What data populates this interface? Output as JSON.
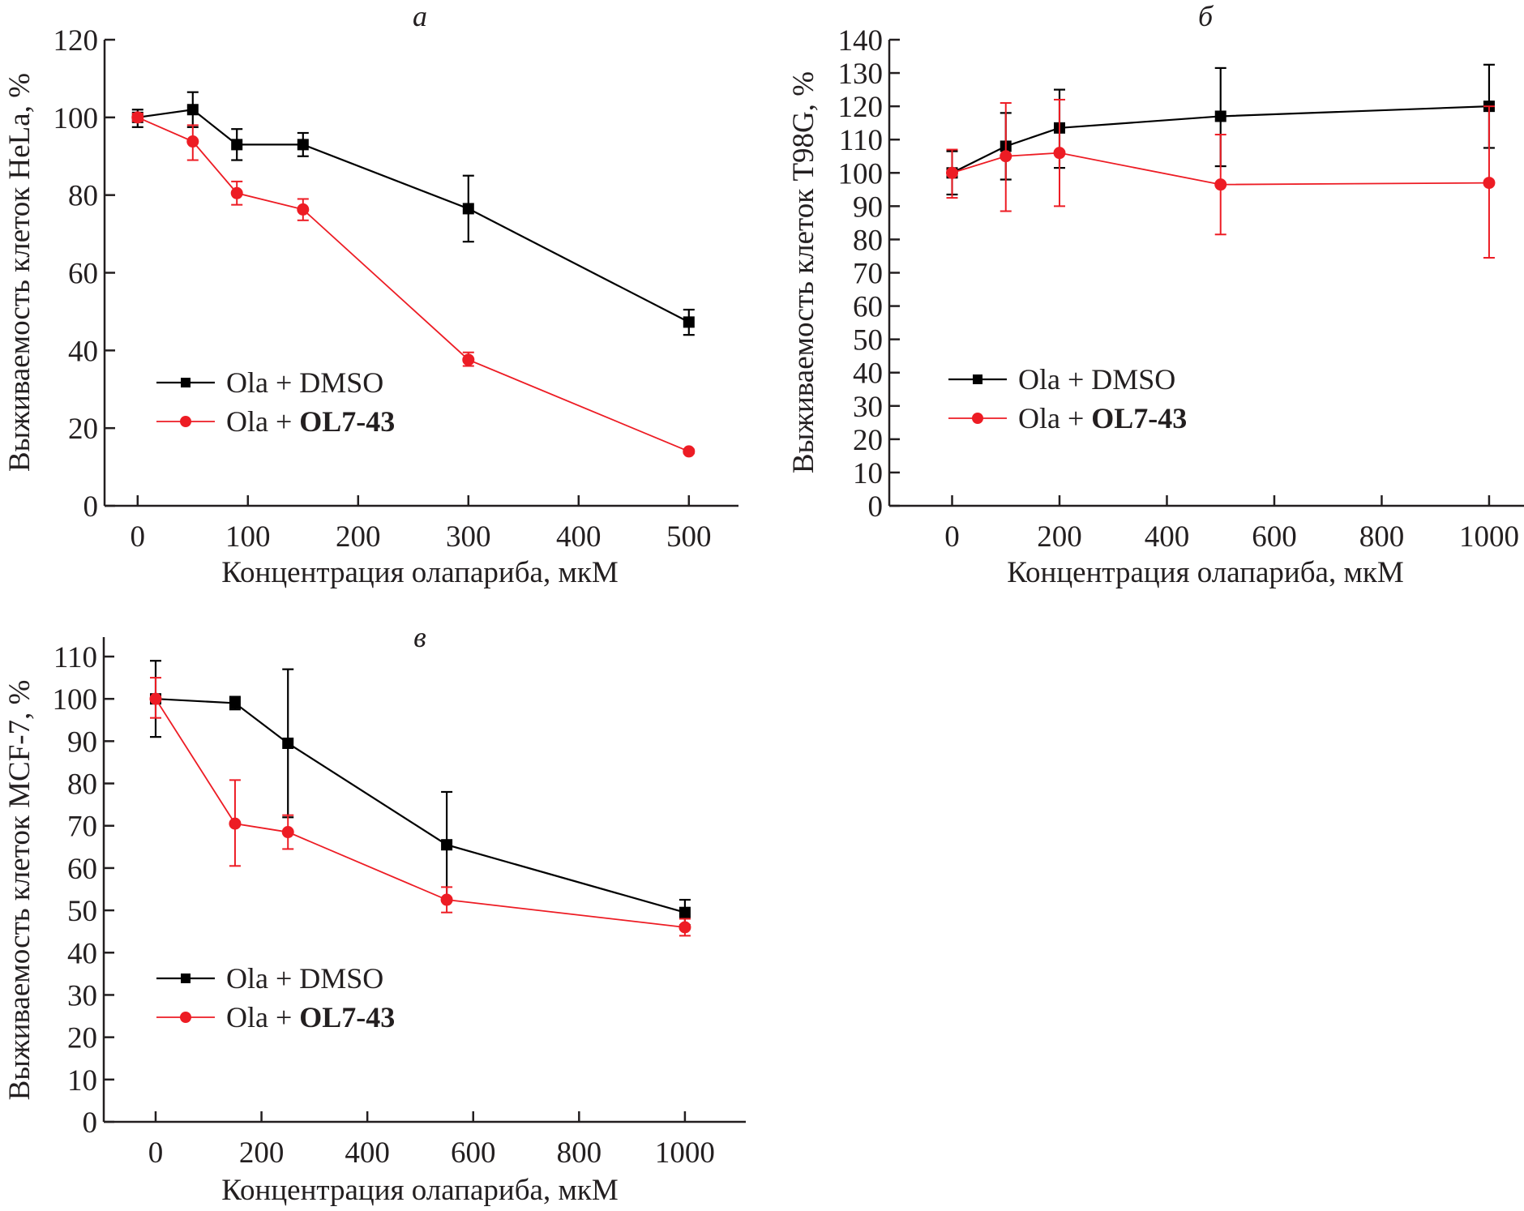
{
  "colors": {
    "dmso": "#000000",
    "ol7": "#ed1c24",
    "axis": "#231f20"
  },
  "chart_data": [
    {
      "type": "line",
      "panel_label": "а",
      "title": "а",
      "xlabel": "Концентрация олапариба, мкМ",
      "ylabel": "Выживаемость клеток HeLa, %",
      "xlim": [
        -30,
        545
      ],
      "ylim": [
        0,
        120
      ],
      "xticks": [
        0,
        100,
        200,
        300,
        400,
        500
      ],
      "yticks": [
        0,
        20,
        40,
        60,
        80,
        100,
        120
      ],
      "xtick_labels": [
        "0",
        "100",
        "200",
        "300",
        "400",
        "500"
      ],
      "ytick_labels": [
        "0",
        "20",
        "40",
        "60",
        "80",
        "100",
        "120"
      ],
      "legend_placement": "lower-left",
      "legend": [
        {
          "prefix": "Ola + ",
          "name": "DMSO",
          "bold": false
        },
        {
          "prefix": "Ola + ",
          "name": "OL7-43",
          "bold": true
        }
      ],
      "series": [
        {
          "name": "Ola + DMSO",
          "marker": "square",
          "color_key": "dmso",
          "x": [
            0,
            50,
            90,
            150,
            300,
            500
          ],
          "y": [
            100,
            102,
            93,
            93,
            76.5,
            47.3
          ],
          "err_low": [
            97.5,
            97.5,
            89,
            90,
            68,
            44
          ],
          "err_high": [
            102,
            106.5,
            97,
            96,
            85,
            50.5
          ]
        },
        {
          "name": "Ola + OL7-43",
          "marker": "circle",
          "color_key": "ol7",
          "x": [
            0,
            50,
            90,
            150,
            300,
            500
          ],
          "y": [
            100,
            93.8,
            80.5,
            76.3,
            37.6,
            14
          ],
          "err_low": [
            99,
            89,
            77.5,
            73.5,
            36,
            13.5
          ],
          "err_high": [
            101,
            98,
            83.5,
            79,
            39.5,
            14.5
          ]
        }
      ]
    },
    {
      "type": "line",
      "panel_label": "б",
      "title": "б",
      "xlabel": "Концентрация олапариба, мкМ",
      "ylabel": "Выживаемость клеток T98G, %",
      "xlim": [
        -117,
        1065
      ],
      "ylim": [
        0,
        140
      ],
      "xticks": [
        0,
        200,
        400,
        600,
        800,
        1000
      ],
      "yticks": [
        0,
        10,
        20,
        30,
        40,
        50,
        60,
        70,
        80,
        90,
        100,
        110,
        120,
        130,
        140
      ],
      "xtick_labels": [
        "0",
        "200",
        "400",
        "600",
        "800",
        "1000"
      ],
      "ytick_labels": [
        "0",
        "10",
        "20",
        "30",
        "40",
        "50",
        "60",
        "70",
        "80",
        "90",
        "100",
        "110",
        "120",
        "130",
        "140"
      ],
      "legend_placement": "lower-left",
      "legend": [
        {
          "prefix": "Ola + ",
          "name": "DMSO",
          "bold": false
        },
        {
          "prefix": "Ola + ",
          "name": "OL7-43",
          "bold": true
        }
      ],
      "series": [
        {
          "name": "Ola + DMSO",
          "marker": "square",
          "color_key": "dmso",
          "x": [
            0,
            100,
            200,
            500,
            1000
          ],
          "y": [
            100,
            108,
            113.5,
            117,
            120
          ],
          "err_low": [
            93.5,
            98,
            101.5,
            102,
            107.5
          ],
          "err_high": [
            106.5,
            118,
            125,
            131.5,
            132.5
          ]
        },
        {
          "name": "Ola + OL7-43",
          "marker": "circle",
          "color_key": "ol7",
          "x": [
            0,
            100,
            200,
            500,
            1000
          ],
          "y": [
            100,
            105,
            106,
            96.5,
            97
          ],
          "err_low": [
            92.5,
            88.5,
            90,
            81.5,
            74.5
          ],
          "err_high": [
            107,
            121,
            122,
            111.5,
            120
          ]
        }
      ]
    },
    {
      "type": "line",
      "panel_label": "в",
      "title": "в",
      "xlabel": "Концентрация олапариба, мкМ",
      "ylabel": "Выживаемость клеток MCF-7, %",
      "xlim": [
        -98,
        1115
      ],
      "ylim": [
        0,
        115
      ],
      "xticks": [
        0,
        200,
        400,
        600,
        800,
        1000
      ],
      "yticks": [
        0,
        10,
        20,
        30,
        40,
        50,
        60,
        70,
        80,
        90,
        100,
        110
      ],
      "xtick_labels": [
        "0",
        "200",
        "400",
        "600",
        "800",
        "1000"
      ],
      "ytick_labels": [
        "0",
        "10",
        "20",
        "30",
        "40",
        "50",
        "60",
        "70",
        "80",
        "90",
        "100",
        "110"
      ],
      "legend_placement": "lower-left",
      "legend": [
        {
          "prefix": "Ola + ",
          "name": "DMSO",
          "bold": false
        },
        {
          "prefix": "Ola + ",
          "name": "OL7-43",
          "bold": true
        }
      ],
      "series": [
        {
          "name": "Ola + DMSO",
          "marker": "square",
          "color_key": "dmso",
          "x": [
            0,
            150,
            250,
            550,
            1000
          ],
          "y": [
            100,
            99,
            89.5,
            65.5,
            49.5
          ],
          "err_low": [
            91,
            97.5,
            72,
            52.5,
            46.5
          ],
          "err_high": [
            109,
            100.5,
            107,
            78,
            52.5
          ]
        },
        {
          "name": "Ola + OL7-43",
          "marker": "circle",
          "color_key": "ol7",
          "x": [
            0,
            150,
            250,
            550,
            1000
          ],
          "y": [
            100,
            70.5,
            68.5,
            52.5,
            46
          ],
          "err_low": [
            95.5,
            60.5,
            64.5,
            49.5,
            44
          ],
          "err_high": [
            105,
            80.8,
            72.5,
            55.5,
            48
          ]
        }
      ]
    }
  ]
}
